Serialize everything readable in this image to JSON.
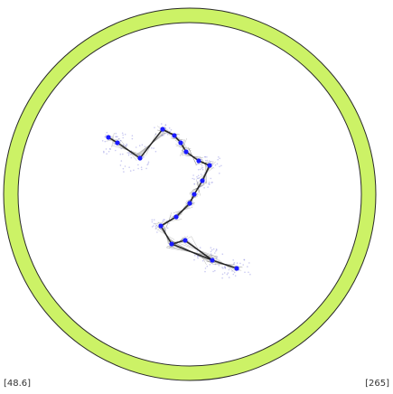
{
  "readouts": {
    "left": "[48.6]",
    "right": "[265]"
  },
  "colors": {
    "background": "#ffffff",
    "ring_fill": "#ccf266",
    "ring_stroke": "#2a2a2a",
    "joint": "#1a1aff",
    "limb": "#111111",
    "trail": "#8a8ae0",
    "mesh": "#666666"
  },
  "icons": {
    "boundary": "circular-ring-icon",
    "figure": "motion-trace-figure"
  }
}
